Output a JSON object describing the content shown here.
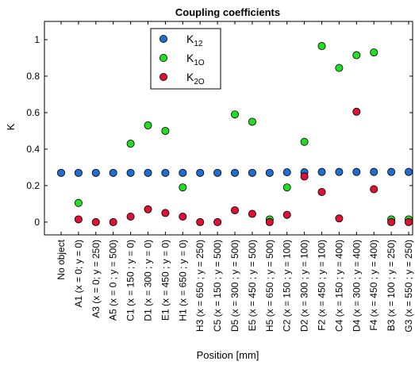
{
  "chart_data": {
    "type": "scatter",
    "title": "Coupling coefficients",
    "xlabel": "Position [mm]",
    "ylabel": "K",
    "ylim": [
      -0.07,
      1.1
    ],
    "yticks": [
      0,
      0.2,
      0.4,
      0.6,
      0.8,
      1
    ],
    "ytick_labels": [
      "0",
      "0.2",
      "0.4",
      "0.6",
      "0.8",
      "1"
    ],
    "grid": false,
    "legend_position": "top-center",
    "categories": [
      "No object",
      "A1 (x = 0; y = 0)",
      "A3 (x = 0; y = 250)",
      "A5 (x = 0 ; y = 500)",
      "C1 (x = 150 ; y = 0)",
      "D1 (x = 300 ; y = 0)",
      "E1 (x = 450 ; y = 0)",
      "H1 (x = 650 ; y = 0)",
      "H3 (x = 650 ; y = 250)",
      "C5 (x = 150 ; y = 500)",
      "D5 (x = 300 ; y = 500)",
      "E5 (x = 450 ; y = 500)",
      "H5 (x = 650 ; y = 500)",
      "C2 (x = 150 ; y = 100)",
      "D2 (x = 300 ; y = 100)",
      "F2 (x = 450 ; y = 100)",
      "C4 (x = 150 ; y = 400)",
      "D4 (x = 300 ; y = 400)",
      "F4 (x = 450 ; y = 400)",
      "B3 (x = 100 ; y = 250)",
      "G3 (x = 550 ; y = 250)"
    ],
    "series": [
      {
        "name": "K",
        "name_sub": "12",
        "color": "#1f6fd1",
        "values": [
          0.27,
          0.27,
          0.27,
          0.27,
          0.27,
          0.27,
          0.27,
          0.27,
          0.27,
          0.27,
          0.27,
          0.27,
          0.27,
          0.273,
          0.273,
          0.275,
          0.275,
          0.275,
          0.275,
          0.275,
          0.275
        ]
      },
      {
        "name": "K",
        "name_sub": "1O",
        "color": "#22dd22",
        "values": [
          null,
          0.105,
          null,
          null,
          0.43,
          0.53,
          0.5,
          0.19,
          null,
          null,
          0.59,
          0.55,
          0.015,
          0.19,
          0.44,
          0.965,
          0.845,
          0.915,
          0.93,
          0.015,
          0.015
        ]
      },
      {
        "name": "K",
        "name_sub": "2O",
        "color": "#dd1133",
        "values": [
          null,
          0.015,
          0.0,
          0.0,
          0.03,
          0.07,
          0.05,
          0.03,
          0.0,
          0.0,
          0.065,
          0.045,
          0.0,
          0.04,
          0.25,
          0.165,
          0.02,
          0.605,
          0.18,
          0.0,
          0.0
        ]
      }
    ]
  }
}
